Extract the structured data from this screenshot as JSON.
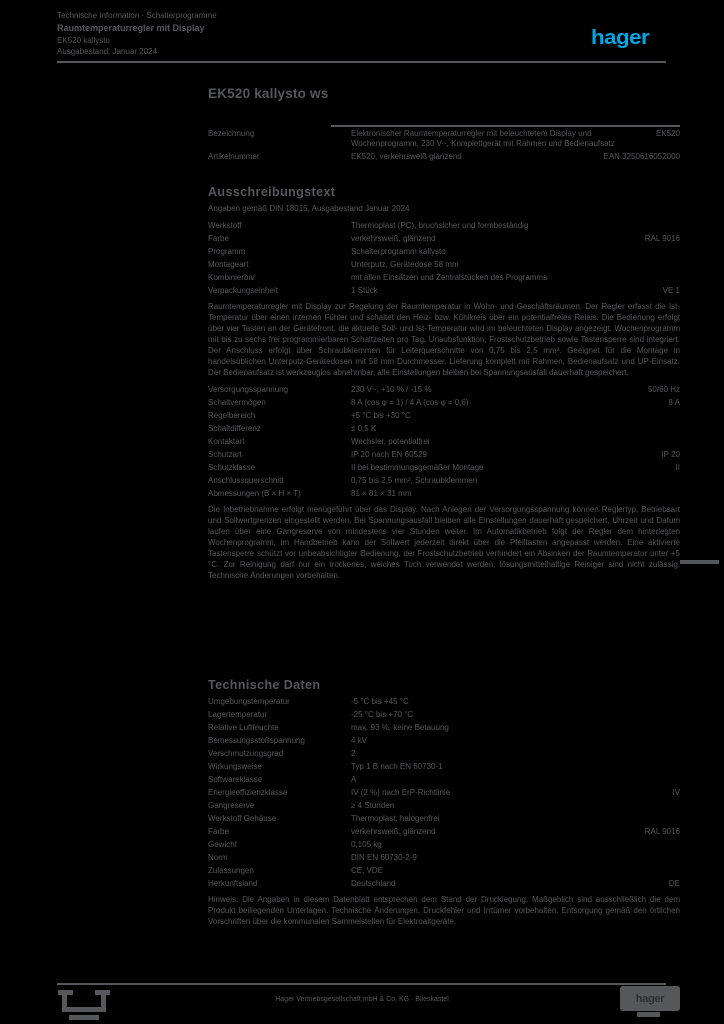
{
  "page": {
    "background_color": "#000000",
    "text_color": "#56575A",
    "accent_color": "#00A5E3"
  },
  "header": {
    "line1": "Technische Information · Schalterprogramme",
    "line2": "Raumtemperaturregler mit Display",
    "line3": "EK520 kallysto",
    "line4": "Ausgabestand: Januar 2024",
    "logo": "hager"
  },
  "title": "EK520 kallysto ws",
  "intro": {
    "rows": [
      {
        "label": "Bezeichnung",
        "value": "Elektronischer Raumtemperaturregler mit beleuchtetem Display und Wochenprogramm, 230 V~, Komplettgerät mit Rahmen und Bedienaufsatz",
        "right": "EK520"
      },
      {
        "label": "Artikelnummer",
        "value": "EK520, verkehrsweiß glänzend",
        "right": "EAN 3250616052000"
      }
    ]
  },
  "sections": [
    {
      "heading": "Ausschreibungstext",
      "subline": "Angaben gemäß DIN 18015, Ausgabestand Januar 2024",
      "rows": [
        {
          "label": "Werkstoff",
          "value": "Thermoplast (PC), bruchsicher und formbeständig",
          "right": ""
        },
        {
          "label": "Farbe",
          "value": "verkehrsweiß, glänzend",
          "right": "RAL 9016"
        },
        {
          "label": "Programm",
          "value": "Schalterprogramm kallysto",
          "right": ""
        },
        {
          "label": "Montageart",
          "value": "Unterputz, Gerätedose 58 mm",
          "right": ""
        },
        {
          "label": "Kombinierbar",
          "value": "mit allen Einsätzen und Zentralstücken des Programms",
          "right": ""
        },
        {
          "label": "Verpackungseinheit",
          "value": "1 Stück",
          "right": "VE 1"
        }
      ],
      "paragraph": "Raumtemperaturregler mit Display zur Regelung der Raumtemperatur in Wohn- und Geschäftsräumen. Der Regler erfasst die Ist-Temperatur über einen internen Fühler und schaltet den Heiz- bzw. Kühlkreis über ein potentialfreies Relais. Die Bedienung erfolgt über vier Tasten an der Gerätefront, die aktuelle Soll- und Ist-Temperatur wird im beleuchteten Display angezeigt. Wochenprogramm mit bis zu sechs frei programmierbaren Schaltzeiten pro Tag, Urlaubsfunktion, Frostschutzbetrieb sowie Tastensperre sind integriert. Der Anschluss erfolgt über Schraubklemmen für Leiterquerschnitte von 0,75 bis 2,5 mm². Geeignet für die Montage in handelsüblichen Unterputz-Gerätedosen mit 58 mm Durchmesser. Lieferung komplett mit Rahmen, Bedienaufsatz und UP-Einsatz. Der Bedienaufsatz ist werkzeuglos abnehmbar, alle Einstellungen bleiben bei Spannungsausfall dauerhaft gespeichert.",
      "rows2": [
        {
          "label": "Versorgungsspannung",
          "value": "230 V~, +10 % / -15 %",
          "right": "50/60 Hz"
        },
        {
          "label": "Schaltvermögen",
          "value": "8 A (cos φ = 1) / 4 A (cos φ = 0,6)",
          "right": "8 A"
        },
        {
          "label": "Regelbereich",
          "value": "+5 °C bis +30 °C",
          "right": ""
        },
        {
          "label": "Schaltdifferenz",
          "value": "± 0,5 K",
          "right": ""
        },
        {
          "label": "Kontaktart",
          "value": "Wechsler, potentialfrei",
          "right": ""
        },
        {
          "label": "Schutzart",
          "value": "IP 20 nach EN 60529",
          "right": "IP 20"
        },
        {
          "label": "Schutzklasse",
          "value": "II bei bestimmungsgemäßer Montage",
          "right": "II"
        },
        {
          "label": "Anschlussquerschnitt",
          "value": "0,75 bis 2,5 mm², Schraubklemmen",
          "right": ""
        },
        {
          "label": "Abmessungen (B × H × T)",
          "value": "81 × 81 × 31 mm",
          "right": ""
        }
      ],
      "paragraph2": "Die Inbetriebnahme erfolgt menügeführt über das Display. Nach Anlegen der Versorgungsspannung können Reglertyp, Betriebsart und Sollwertgrenzen eingestellt werden. Bei Spannungsausfall bleiben alle Einstellungen dauerhaft gespeichert, Uhrzeit und Datum laufen über eine Gangreserve von mindestens vier Stunden weiter. Im Automatikbetrieb folgt der Regler dem hinterlegten Wochenprogramm, im Handbetrieb kann der Sollwert jederzeit direkt über die Pfeiltasten angepasst werden. Eine aktivierte Tastensperre schützt vor unbeabsichtigter Bedienung, der Frostschutzbetrieb verhindert ein Absinken der Raumtemperatur unter +5 °C. Zur Reinigung darf nur ein trockenes, weiches Tuch verwendet werden, lösungsmittelhaltige Reiniger sind nicht zulässig. Technische Änderungen vorbehalten."
    },
    {
      "heading": "Technische Daten",
      "rows": [
        {
          "label": "Umgebungstemperatur",
          "value": "-5 °C bis +45 °C",
          "right": ""
        },
        {
          "label": "Lagertemperatur",
          "value": "-25 °C bis +70 °C",
          "right": ""
        },
        {
          "label": "Relative Luftfeuchte",
          "value": "max. 93 %, keine Betauung",
          "right": ""
        },
        {
          "label": "Bemessungsstoßspannung",
          "value": "4 kV",
          "right": ""
        },
        {
          "label": "Verschmutzungsgrad",
          "value": "2",
          "right": ""
        },
        {
          "label": "Wirkungsweise",
          "value": "Typ 1 B nach EN 60730-1",
          "right": ""
        },
        {
          "label": "Softwareklasse",
          "value": "A",
          "right": ""
        },
        {
          "label": "Energieeffizienzklasse",
          "value": "IV (2 %) nach ErP-Richtlinie",
          "right": "IV"
        },
        {
          "label": "Gangreserve",
          "value": "≥ 4 Stunden",
          "right": ""
        },
        {
          "label": "Werkstoff Gehäuse",
          "value": "Thermoplast, halogenfrei",
          "right": ""
        },
        {
          "label": "Farbe",
          "value": "verkehrsweiß, glänzend",
          "right": "RAL 9016"
        },
        {
          "label": "Gewicht",
          "value": "0,105 kg",
          "right": ""
        },
        {
          "label": "Norm",
          "value": "DIN EN 60730-2-9",
          "right": ""
        },
        {
          "label": "Zulassungen",
          "value": "CE, VDE",
          "right": ""
        },
        {
          "label": "Herkunftsland",
          "value": "Deutschland",
          "right": "DE"
        }
      ],
      "note": "Hinweis: Die Angaben in diesem Datenblatt entsprechen dem Stand der Drucklegung. Maßgeblich sind ausschließlich die dem Produkt beiliegenden Unterlagen. Technische Änderungen, Druckfehler und Irrtümer vorbehalten. Entsorgung gemäß den örtlichen Vorschriften über die kommunalen Sammelstellen für Elektroaltgeräte."
    }
  ],
  "footer": {
    "company": "Hager Vertriebsgesellschaft mbH & Co. KG · Blieskastel",
    "box_label": "hager"
  }
}
